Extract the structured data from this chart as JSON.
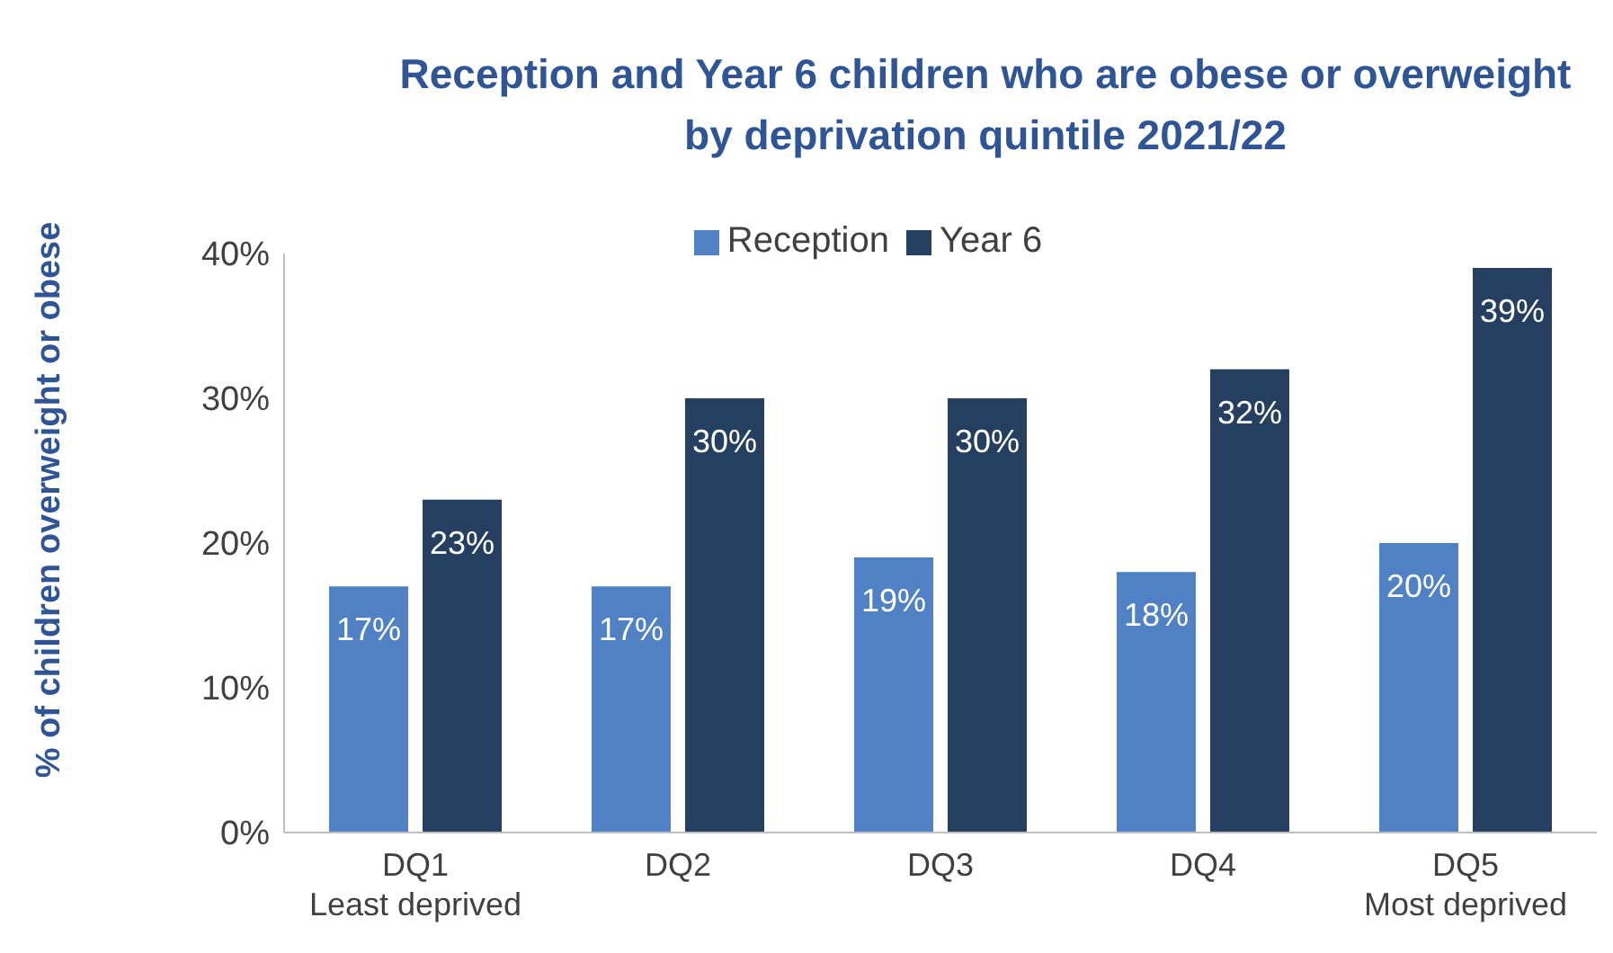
{
  "chart_data": {
    "type": "bar",
    "title": "Reception and Year 6 children who are obese or overweight\nby deprivation quintile 2021/22",
    "ylabel": "% of children overweight or obese",
    "categories": [
      "DQ1\nLeast deprived",
      "DQ2",
      "DQ3",
      "DQ4",
      "DQ5\nMost deprived"
    ],
    "series": [
      {
        "name": "Reception",
        "color": "#4f81c4",
        "values": [
          17,
          17,
          19,
          18,
          20
        ],
        "value_labels": [
          "17%",
          "17%",
          "19%",
          "18%",
          "20%"
        ]
      },
      {
        "name": "Year 6",
        "color": "#243f60",
        "values": [
          23,
          30,
          30,
          32,
          39
        ],
        "value_labels": [
          "23%",
          "30%",
          "30%",
          "32%",
          "39%"
        ]
      }
    ],
    "ylim": [
      0,
      40
    ],
    "yticks": [
      {
        "value": 0,
        "label": "0%"
      },
      {
        "value": 10,
        "label": "10%"
      },
      {
        "value": 20,
        "label": "20%"
      },
      {
        "value": 30,
        "label": "30%"
      },
      {
        "value": 40,
        "label": "40%"
      }
    ],
    "grid": false,
    "legend": "top"
  }
}
